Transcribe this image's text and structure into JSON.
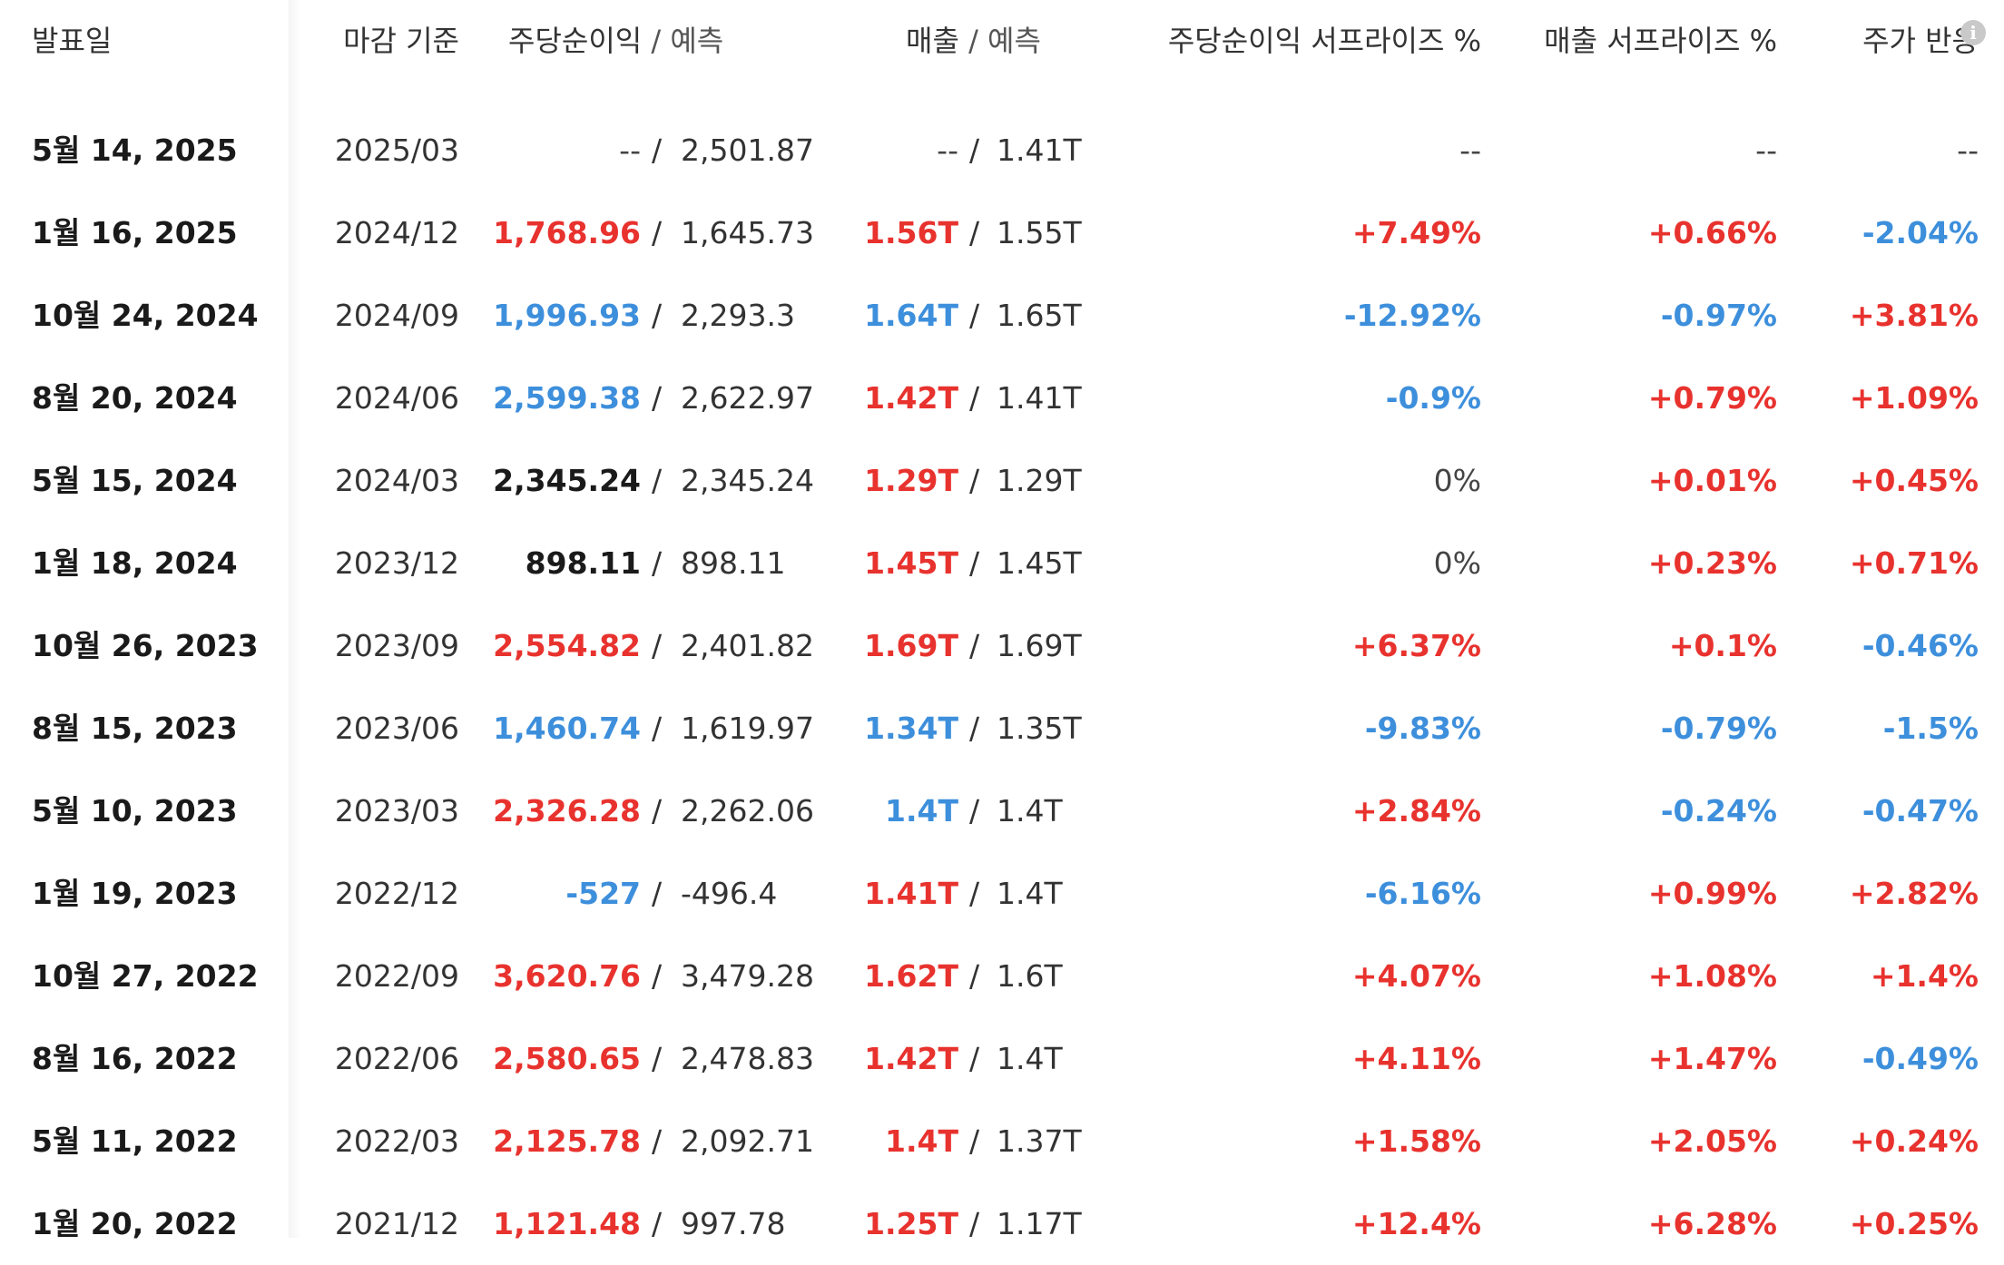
{
  "colors": {
    "up": "#e8322e",
    "down": "#3d8fdc",
    "neutral": "#1a1a1a"
  },
  "header": {
    "date": "발표일",
    "period": "마감 기준",
    "eps": "주당순이익",
    "eps_est": "예측",
    "revenue": "매출",
    "revenue_est": "예측",
    "eps_surprise": "주당순이익 서프라이즈 %",
    "revenue_surprise": "매출 서프라이즈 %",
    "price_reaction": "주가 반응",
    "separator": "/",
    "info_icon": "info-icon"
  },
  "rows": [
    {
      "date": "5월 14, 2025",
      "period": "2025/03",
      "eps": "--",
      "eps_est": "2,501.87",
      "revenue": "--",
      "revenue_est": "1.41T",
      "eps_surprise": "--",
      "revenue_surprise": "--",
      "price_reaction": "--",
      "eps_color": "muted",
      "rev_color": "muted",
      "eps_sur_color": "muted",
      "rev_sur_color": "muted",
      "price_color": "muted"
    },
    {
      "date": "1월 16, 2025",
      "period": "2024/12",
      "eps": "1,768.96",
      "eps_est": "1,645.73",
      "revenue": "1.56T",
      "revenue_est": "1.55T",
      "eps_surprise": "+7.49%",
      "revenue_surprise": "+0.66%",
      "price_reaction": "-2.04%",
      "eps_color": "up",
      "rev_color": "up",
      "eps_sur_color": "up",
      "rev_sur_color": "up",
      "price_color": "down"
    },
    {
      "date": "10월 24, 2024",
      "period": "2024/09",
      "eps": "1,996.93",
      "eps_est": "2,293.3",
      "revenue": "1.64T",
      "revenue_est": "1.65T",
      "eps_surprise": "-12.92%",
      "revenue_surprise": "-0.97%",
      "price_reaction": "+3.81%",
      "eps_color": "down",
      "rev_color": "down",
      "eps_sur_color": "down",
      "rev_sur_color": "down",
      "price_color": "up"
    },
    {
      "date": "8월 20, 2024",
      "period": "2024/06",
      "eps": "2,599.38",
      "eps_est": "2,622.97",
      "revenue": "1.42T",
      "revenue_est": "1.41T",
      "eps_surprise": "-0.9%",
      "revenue_surprise": "+0.79%",
      "price_reaction": "+1.09%",
      "eps_color": "down",
      "rev_color": "up",
      "eps_sur_color": "down",
      "rev_sur_color": "up",
      "price_color": "up"
    },
    {
      "date": "5월 15, 2024",
      "period": "2024/03",
      "eps": "2,345.24",
      "eps_est": "2,345.24",
      "revenue": "1.29T",
      "revenue_est": "1.29T",
      "eps_surprise": "0%",
      "revenue_surprise": "+0.01%",
      "price_reaction": "+0.45%",
      "eps_color": "neutral",
      "rev_color": "up",
      "eps_sur_color": "muted",
      "rev_sur_color": "up",
      "price_color": "up"
    },
    {
      "date": "1월 18, 2024",
      "period": "2023/12",
      "eps": "898.11",
      "eps_est": "898.11",
      "revenue": "1.45T",
      "revenue_est": "1.45T",
      "eps_surprise": "0%",
      "revenue_surprise": "+0.23%",
      "price_reaction": "+0.71%",
      "eps_color": "neutral",
      "rev_color": "up",
      "eps_sur_color": "muted",
      "rev_sur_color": "up",
      "price_color": "up"
    },
    {
      "date": "10월 26, 2023",
      "period": "2023/09",
      "eps": "2,554.82",
      "eps_est": "2,401.82",
      "revenue": "1.69T",
      "revenue_est": "1.69T",
      "eps_surprise": "+6.37%",
      "revenue_surprise": "+0.1%",
      "price_reaction": "-0.46%",
      "eps_color": "up",
      "rev_color": "up",
      "eps_sur_color": "up",
      "rev_sur_color": "up",
      "price_color": "down"
    },
    {
      "date": "8월 15, 2023",
      "period": "2023/06",
      "eps": "1,460.74",
      "eps_est": "1,619.97",
      "revenue": "1.34T",
      "revenue_est": "1.35T",
      "eps_surprise": "-9.83%",
      "revenue_surprise": "-0.79%",
      "price_reaction": "-1.5%",
      "eps_color": "down",
      "rev_color": "down",
      "eps_sur_color": "down",
      "rev_sur_color": "down",
      "price_color": "down"
    },
    {
      "date": "5월 10, 2023",
      "period": "2023/03",
      "eps": "2,326.28",
      "eps_est": "2,262.06",
      "revenue": "1.4T",
      "revenue_est": "1.4T",
      "eps_surprise": "+2.84%",
      "revenue_surprise": "-0.24%",
      "price_reaction": "-0.47%",
      "eps_color": "up",
      "rev_color": "down",
      "eps_sur_color": "up",
      "rev_sur_color": "down",
      "price_color": "down"
    },
    {
      "date": "1월 19, 2023",
      "period": "2022/12",
      "eps": "-527",
      "eps_est": "-496.4",
      "revenue": "1.41T",
      "revenue_est": "1.4T",
      "eps_surprise": "-6.16%",
      "revenue_surprise": "+0.99%",
      "price_reaction": "+2.82%",
      "eps_color": "down",
      "rev_color": "up",
      "eps_sur_color": "down",
      "rev_sur_color": "up",
      "price_color": "up"
    },
    {
      "date": "10월 27, 2022",
      "period": "2022/09",
      "eps": "3,620.76",
      "eps_est": "3,479.28",
      "revenue": "1.62T",
      "revenue_est": "1.6T",
      "eps_surprise": "+4.07%",
      "revenue_surprise": "+1.08%",
      "price_reaction": "+1.4%",
      "eps_color": "up",
      "rev_color": "up",
      "eps_sur_color": "up",
      "rev_sur_color": "up",
      "price_color": "up"
    },
    {
      "date": "8월 16, 2022",
      "period": "2022/06",
      "eps": "2,580.65",
      "eps_est": "2,478.83",
      "revenue": "1.42T",
      "revenue_est": "1.4T",
      "eps_surprise": "+4.11%",
      "revenue_surprise": "+1.47%",
      "price_reaction": "-0.49%",
      "eps_color": "up",
      "rev_color": "up",
      "eps_sur_color": "up",
      "rev_sur_color": "up",
      "price_color": "down"
    },
    {
      "date": "5월 11, 2022",
      "period": "2022/03",
      "eps": "2,125.78",
      "eps_est": "2,092.71",
      "revenue": "1.4T",
      "revenue_est": "1.37T",
      "eps_surprise": "+1.58%",
      "revenue_surprise": "+2.05%",
      "price_reaction": "+0.24%",
      "eps_color": "up",
      "rev_color": "up",
      "eps_sur_color": "up",
      "rev_sur_color": "up",
      "price_color": "up"
    },
    {
      "date": "1월 20, 2022",
      "period": "2021/12",
      "eps": "1,121.48",
      "eps_est": "997.78",
      "revenue": "1.25T",
      "revenue_est": "1.17T",
      "eps_surprise": "+12.4%",
      "revenue_surprise": "+6.28%",
      "price_reaction": "+0.25%",
      "eps_color": "up",
      "rev_color": "up",
      "eps_sur_color": "up",
      "rev_sur_color": "up",
      "price_color": "up"
    }
  ]
}
